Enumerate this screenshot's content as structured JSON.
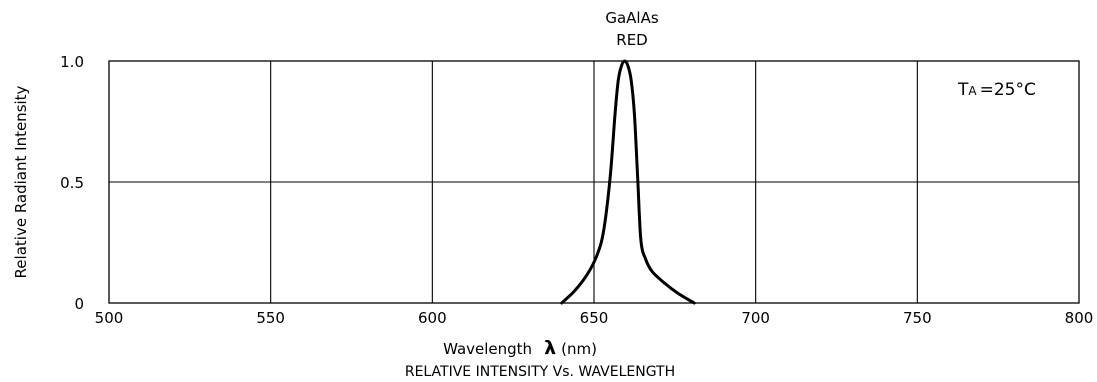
{
  "chart_data": {
    "type": "line",
    "title": "RELATIVE INTENSITY Vs. WAVELENGTH",
    "annotation": {
      "line1": "GaAlAs",
      "line2": "RED"
    },
    "condition": {
      "prefix": "T",
      "subscript": "A",
      "value": "=25°C"
    },
    "xlabel": "Wavelength",
    "xlabel_symbol": "λ",
    "xlabel_unit": "(nm)",
    "ylabel": "Relative Radiant Intensity",
    "xlim": [
      500,
      800
    ],
    "ylim": [
      0,
      1.0
    ],
    "x_ticks": [
      "500",
      "550",
      "600",
      "650",
      "700",
      "750",
      "800"
    ],
    "y_ticks": [
      "0",
      "0.5",
      "1.0"
    ],
    "grid": true,
    "series": [
      {
        "color": "#000000",
        "x": [
          640,
          644,
          648,
          651,
          653,
          655,
          656.5,
          657.5,
          658.5,
          659.5,
          660.5,
          661.5,
          662.5,
          663.5,
          664.5,
          666,
          668,
          672,
          676,
          681
        ],
        "y": [
          0.0,
          0.05,
          0.12,
          0.2,
          0.3,
          0.52,
          0.78,
          0.92,
          0.98,
          1.0,
          0.98,
          0.92,
          0.78,
          0.52,
          0.26,
          0.18,
          0.13,
          0.08,
          0.04,
          0.0
        ]
      }
    ]
  }
}
